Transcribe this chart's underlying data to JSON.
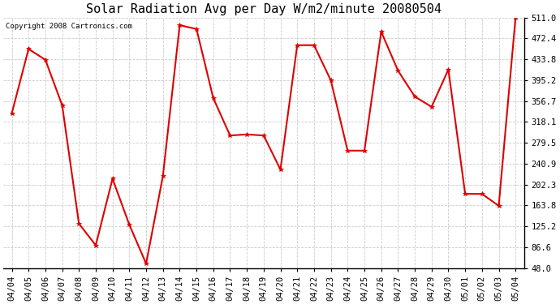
{
  "title": "Solar Radiation Avg per Day W/m2/minute 20080504",
  "copyright": "Copyright 2008 Cartronics.com",
  "dates": [
    "04/04",
    "04/05",
    "04/06",
    "04/07",
    "04/08",
    "04/09",
    "04/10",
    "04/11",
    "04/12",
    "04/13",
    "04/14",
    "04/15",
    "04/16",
    "04/17",
    "04/18",
    "04/19",
    "04/20",
    "04/21",
    "04/22",
    "04/23",
    "04/24",
    "04/25",
    "04/26",
    "04/27",
    "04/28",
    "04/29",
    "04/30",
    "05/01",
    "05/02",
    "05/03",
    "05/04"
  ],
  "values": [
    334.0,
    453.0,
    433.0,
    349.0,
    130.0,
    90.0,
    213.0,
    128.0,
    56.0,
    218.0,
    497.0,
    490.0,
    362.0,
    293.0,
    295.0,
    293.0,
    230.0,
    460.0,
    460.0,
    395.0,
    265.0,
    265.0,
    485.0,
    413.0,
    365.0,
    346.0,
    415.0,
    185.0,
    185.0,
    163.0,
    511.0
  ],
  "line_color": "#dd0000",
  "marker_color": "#dd0000",
  "bg_color": "#ffffff",
  "grid_color": "#cccccc",
  "ylim": [
    48.0,
    511.0
  ],
  "yticks": [
    48.0,
    86.6,
    125.2,
    163.8,
    202.3,
    240.9,
    279.5,
    318.1,
    356.7,
    395.2,
    433.8,
    472.4,
    511.0
  ],
  "title_fontsize": 11,
  "copyright_fontsize": 6.5,
  "tick_fontsize": 7.5
}
